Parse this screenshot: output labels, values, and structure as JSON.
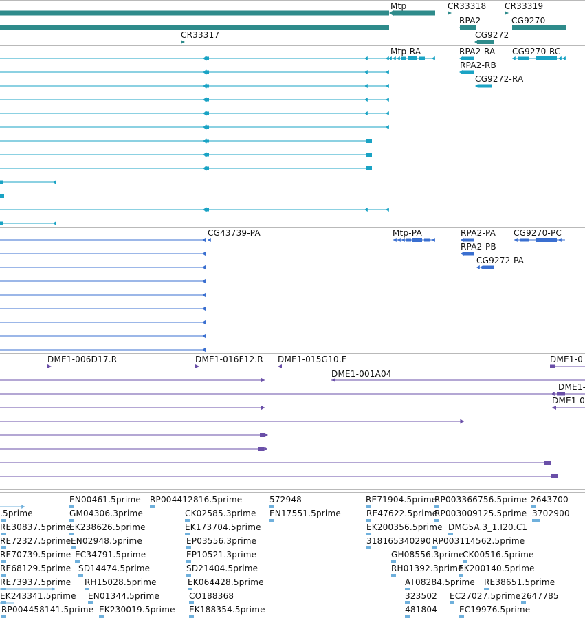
{
  "colors": {
    "gene": "#2e8b8b",
    "transcript_1": "#1aa3c4",
    "transcript_2": "#3a6fd0",
    "cdna": "#6a4fa8",
    "est": "#6fb0dc",
    "separator": "#b9b9b9"
  },
  "gene_track": {
    "labels": [
      "Mtp",
      "CR33318",
      "CR33319",
      "RPA2",
      "CG9270",
      "CG9272",
      "CR33317"
    ]
  },
  "transcript_track_1": {
    "labels": [
      "Mtp-RA",
      "RPA2-RA",
      "CG9270-RC",
      "RPA2-RB",
      "CG9272-RA"
    ]
  },
  "transcript_track_2": {
    "labels": [
      "CG43739-PA",
      "Mtp-PA",
      "RPA2-PA",
      "CG9270-PC",
      "RPA2-PB",
      "CG9272-PA"
    ]
  },
  "cdna_track": {
    "labels": [
      "DME1-006D17.R",
      "DME1-016F12.R",
      "DME1-015G10.F",
      "DME1-0",
      "DME1-001A04",
      "DME1-",
      "DME1-0"
    ]
  },
  "est_track": {
    "labels": [
      "EN00461.5prime",
      "RP004412816.5prime",
      "572948",
      "RE71904.5prime",
      "RP003366756.5prime",
      "2643700",
      ".5prime",
      "GM04306.3prime",
      "CK02585.3prime",
      "EN17551.5prime",
      "RE47622.5prime",
      "RP003009125.5prime",
      "3702900",
      "RE30837.5prime",
      "EK238626.5prime",
      "EK173704.5prime",
      "EK200356.5prime",
      "DMG5A.3_1.I20.C1",
      "RE72327.5prime",
      "EN02948.5prime",
      "EP03556.3prime",
      "318165340290",
      "RP003114562.5prime",
      "RE70739.5prime",
      "EC34791.5prime",
      "EP10521.3prime",
      "GH08556.3prime",
      "CK00516.5prime",
      "RE68129.5prime",
      "SD14474.5prime",
      "SD21404.5prime",
      "RH01392.3prime",
      "EK200140.5prime",
      "RE73937.5prime",
      "RH15028.5prime",
      "EK064428.5prime",
      "AT08284.5prime",
      "RE38651.5prime",
      "EK243341.5prime",
      "EN01344.5prime",
      "CO188368",
      "323502",
      "EC27027.5prime",
      "2647785",
      "RP004458141.5prime",
      "EK230019.5prime",
      "EK188354.5prime",
      "481804",
      "EC19976.5prime"
    ]
  }
}
